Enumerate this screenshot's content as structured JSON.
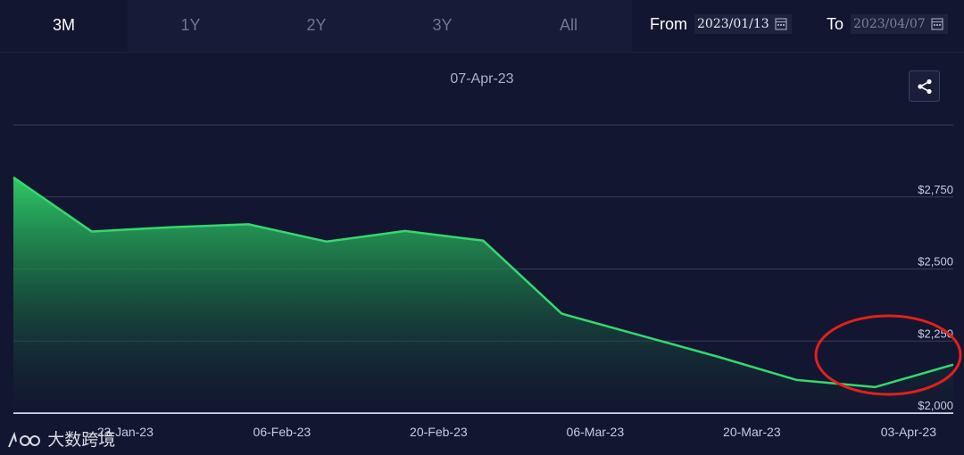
{
  "range_tabs": [
    {
      "label": "3M",
      "active": true
    },
    {
      "label": "1Y",
      "active": false
    },
    {
      "label": "2Y",
      "active": false
    },
    {
      "label": "3Y",
      "active": false
    },
    {
      "label": "All",
      "active": false
    }
  ],
  "date_range": {
    "from_label": "From",
    "from_value": "2023/01/13",
    "to_label": "To",
    "to_value": "2023/04/07"
  },
  "watermark": {
    "text": "大数跨境"
  },
  "colors": {
    "line": "#35d86e",
    "highlight_circle": "#e0211b",
    "background": "#131630"
  },
  "chart_data": {
    "type": "area",
    "title": "07-Apr-23",
    "x": [
      "13-Jan-23",
      "20-Jan-23",
      "27-Jan-23",
      "03-Feb-23",
      "10-Feb-23",
      "17-Feb-23",
      "24-Feb-23",
      "03-Mar-23",
      "10-Mar-23",
      "17-Mar-23",
      "24-Mar-23",
      "31-Mar-23",
      "07-Apr-23"
    ],
    "values": [
      2818,
      2630,
      2645,
      2655,
      2595,
      2632,
      2598,
      2345,
      2270,
      2195,
      2115,
      2090,
      2168
    ],
    "x_ticks": [
      "23-Jan-23",
      "06-Feb-23",
      "20-Feb-23",
      "06-Mar-23",
      "20-Mar-23",
      "03-Apr-23"
    ],
    "y_ticks": [
      "$2,000",
      "$2,250",
      "$2,500",
      "$2,750"
    ],
    "y_tick_values": [
      2000,
      2250,
      2500,
      2750
    ],
    "ylim": [
      2000,
      3000
    ],
    "grid": true,
    "annotation": "red circle highlighting the final upturn"
  }
}
